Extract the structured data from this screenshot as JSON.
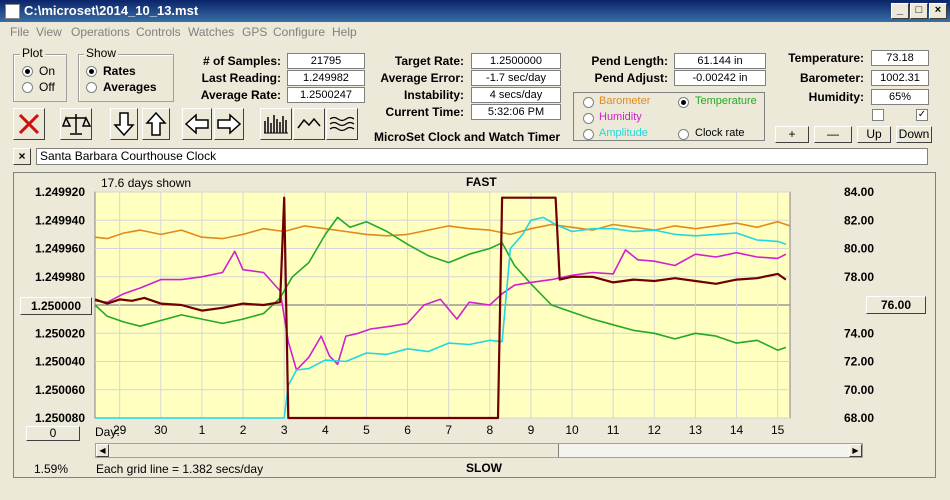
{
  "window": {
    "title": "C:\\microset\\2014_10_13.mst"
  },
  "menu": [
    "File",
    "View",
    "Operations",
    "Controls",
    "Watches",
    "GPS",
    "Configure",
    "Help"
  ],
  "plot_group": {
    "label": "Plot",
    "on": "On",
    "off": "Off",
    "selected": "On"
  },
  "show_group": {
    "label": "Show",
    "rates": "Rates",
    "averages": "Averages",
    "selected": "Rates"
  },
  "stats": {
    "samples_label": "# of Samples:",
    "samples": "21795",
    "last_reading_label": "Last Reading:",
    "last_reading": "1.249982",
    "average_rate_label": "Average Rate:",
    "average_rate": "1.2500247",
    "target_rate_label": "Target Rate:",
    "target_rate": "1.2500000",
    "average_error_label": "Average Error:",
    "average_error": "-1.7 sec/day",
    "instability_label": "Instability:",
    "instability": "4 secs/day",
    "current_time_label": "Current Time:",
    "current_time": "5:32:06 PM",
    "pend_length_label": "Pend Length:",
    "pend_length": "61.144 in",
    "pend_adjust_label": "Pend Adjust:",
    "pend_adjust": "-0.00242 in",
    "temperature_label": "Temperature:",
    "temperature": "73.18",
    "barometer_label": "Barometer:",
    "barometer": "1002.31",
    "humidity_label": "Humidity:",
    "humidity": "65%"
  },
  "app_caption": "MicroSet Clock and Watch Timer",
  "sensor_options": {
    "barometer": "Barometer",
    "temperature": "Temperature",
    "humidity": "Humidity",
    "amplitude": "Amplitude",
    "clock_rate": "Clock rate",
    "selected": "Temperature"
  },
  "right_buttons": {
    "plus": "+",
    "minus": "—",
    "up": "Up",
    "down": "Down"
  },
  "checkboxes": [
    false,
    true
  ],
  "clock_name": "Santa Barbara Courthouse Clock",
  "close_label": "×",
  "colors": {
    "barometer": "#e08a1c",
    "temperature": "#22aa22",
    "humidity": "#d020d0",
    "amplitude": "#20d8e0",
    "clock_rate": "#700000",
    "plot_bg": "#ffffc0",
    "stop_icon": "#d01010"
  },
  "plot": {
    "days_shown": "17.6 days shown",
    "fast_label": "FAST",
    "slow_label": "SLOW",
    "grid_note": "Each grid line = 1.382 secs/day",
    "zoom_pct": "1.59%",
    "center_left_button": "1.250000",
    "center_right_button": "76.00",
    "left_bottom_button": "0",
    "day_label": "Day:"
  },
  "chart_data": {
    "type": "line",
    "y_left_ticks": [
      "1.249920",
      "1.249940",
      "1.249960",
      "1.249980",
      "1.250000",
      "1.250020",
      "1.250040",
      "1.250060",
      "1.250080"
    ],
    "y_right_ticks": [
      "84.00",
      "82.00",
      "80.00",
      "78.00",
      "76.00",
      "74.00",
      "72.00",
      "70.00",
      "68.00"
    ],
    "y_left_range": [
      1.24992,
      1.25008
    ],
    "y_right_range": [
      68,
      84
    ],
    "x_range": [
      28.4,
      15.3
    ],
    "x_ticks": [
      {
        "label": "29",
        "day": 29
      },
      {
        "label": "30",
        "day": 30
      },
      {
        "label": "1",
        "day": 31
      },
      {
        "label": "2",
        "day": 32
      },
      {
        "label": "3",
        "day": 33
      },
      {
        "label": "4",
        "day": 34
      },
      {
        "label": "5",
        "day": 35
      },
      {
        "label": "6",
        "day": 36
      },
      {
        "label": "7",
        "day": 37
      },
      {
        "label": "8",
        "day": 38
      },
      {
        "label": "9",
        "day": 39
      },
      {
        "label": "10",
        "day": 40
      },
      {
        "label": "11",
        "day": 41
      },
      {
        "label": "12",
        "day": 42
      },
      {
        "label": "13",
        "day": 43
      },
      {
        "label": "14",
        "day": 44
      },
      {
        "label": "15",
        "day": 45
      }
    ],
    "grid": true,
    "series": [
      {
        "key": "barometer",
        "axis": "right",
        "points": [
          [
            28.4,
            80.8
          ],
          [
            28.7,
            80.7
          ],
          [
            29.1,
            81.1
          ],
          [
            29.5,
            81.3
          ],
          [
            30.0,
            81.0
          ],
          [
            30.5,
            81.3
          ],
          [
            31.0,
            80.8
          ],
          [
            31.5,
            80.7
          ],
          [
            32.0,
            81.0
          ],
          [
            32.5,
            81.4
          ],
          [
            33.0,
            81.2
          ],
          [
            33.5,
            81.6
          ],
          [
            34.0,
            81.4
          ],
          [
            34.5,
            81.2
          ],
          [
            35.0,
            81.0
          ],
          [
            35.5,
            80.9
          ],
          [
            36.0,
            81.0
          ],
          [
            36.5,
            81.3
          ],
          [
            37.0,
            81.6
          ],
          [
            37.5,
            81.4
          ],
          [
            38.0,
            81.3
          ],
          [
            38.5,
            81.0
          ],
          [
            39.0,
            81.4
          ],
          [
            39.5,
            81.7
          ],
          [
            40.0,
            81.5
          ],
          [
            40.5,
            81.3
          ],
          [
            41.0,
            81.7
          ],
          [
            41.5,
            81.5
          ],
          [
            42.0,
            81.3
          ],
          [
            42.5,
            81.6
          ],
          [
            43.0,
            81.4
          ],
          [
            43.5,
            81.6
          ],
          [
            44.0,
            81.8
          ],
          [
            44.5,
            81.5
          ],
          [
            45.0,
            81.9
          ],
          [
            45.3,
            81.6
          ]
        ]
      },
      {
        "key": "temperature",
        "axis": "right",
        "points": [
          [
            28.4,
            76.0
          ],
          [
            28.7,
            75.2
          ],
          [
            29.1,
            74.8
          ],
          [
            29.5,
            74.5
          ],
          [
            30.0,
            74.9
          ],
          [
            30.5,
            75.3
          ],
          [
            31.0,
            75.0
          ],
          [
            31.5,
            74.7
          ],
          [
            32.0,
            75.0
          ],
          [
            32.5,
            75.4
          ],
          [
            32.9,
            76.5
          ],
          [
            33.2,
            78.0
          ],
          [
            33.6,
            79.0
          ],
          [
            34.0,
            81.0
          ],
          [
            34.3,
            82.2
          ],
          [
            34.6,
            81.5
          ],
          [
            35.0,
            81.9
          ],
          [
            35.5,
            81.2
          ],
          [
            36.0,
            80.3
          ],
          [
            36.5,
            79.5
          ],
          [
            37.0,
            79.0
          ],
          [
            37.5,
            79.6
          ],
          [
            38.0,
            80.0
          ],
          [
            38.3,
            80.4
          ],
          [
            38.6,
            78.8
          ],
          [
            39.0,
            77.5
          ],
          [
            39.5,
            76.0
          ],
          [
            40.0,
            75.5
          ],
          [
            40.5,
            75.0
          ],
          [
            41.0,
            74.6
          ],
          [
            41.5,
            74.2
          ],
          [
            42.0,
            74.0
          ],
          [
            42.5,
            73.6
          ],
          [
            43.0,
            74.0
          ],
          [
            43.5,
            73.8
          ],
          [
            44.0,
            73.3
          ],
          [
            44.5,
            73.5
          ],
          [
            45.0,
            72.8
          ],
          [
            45.2,
            73.0
          ]
        ]
      },
      {
        "key": "humidity",
        "axis": "right",
        "points": [
          [
            28.4,
            76.3
          ],
          [
            28.7,
            76.2
          ],
          [
            29.1,
            76.8
          ],
          [
            29.5,
            77.2
          ],
          [
            30.0,
            77.8
          ],
          [
            30.5,
            77.8
          ],
          [
            31.0,
            78.0
          ],
          [
            31.5,
            78.3
          ],
          [
            31.8,
            79.8
          ],
          [
            32.0,
            78.5
          ],
          [
            32.5,
            78.3
          ],
          [
            32.9,
            77.0
          ],
          [
            33.1,
            73.4
          ],
          [
            33.3,
            71.4
          ],
          [
            33.6,
            72.3
          ],
          [
            33.9,
            73.8
          ],
          [
            34.1,
            72.4
          ],
          [
            34.3,
            71.8
          ],
          [
            34.5,
            73.8
          ],
          [
            34.8,
            74.0
          ],
          [
            35.1,
            74.3
          ],
          [
            35.6,
            74.5
          ],
          [
            36.0,
            74.7
          ],
          [
            36.4,
            76.0
          ],
          [
            36.8,
            76.4
          ],
          [
            37.2,
            75.0
          ],
          [
            37.5,
            76.2
          ],
          [
            38.0,
            76.0
          ],
          [
            38.3,
            76.8
          ],
          [
            38.6,
            77.4
          ],
          [
            39.0,
            77.6
          ],
          [
            39.5,
            77.8
          ],
          [
            40.0,
            78.1
          ],
          [
            40.5,
            78.3
          ],
          [
            41.0,
            78.2
          ],
          [
            41.3,
            79.9
          ],
          [
            41.6,
            79.2
          ],
          [
            42.0,
            79.1
          ],
          [
            42.5,
            78.8
          ],
          [
            43.0,
            79.6
          ],
          [
            43.5,
            79.4
          ],
          [
            44.0,
            79.7
          ],
          [
            44.5,
            79.4
          ],
          [
            45.0,
            79.3
          ],
          [
            45.2,
            79.6
          ]
        ]
      },
      {
        "key": "amplitude",
        "axis": "right",
        "points": [
          [
            28.4,
            68.0
          ],
          [
            30.0,
            68.0
          ],
          [
            31.5,
            68.0
          ],
          [
            32.8,
            68.0
          ],
          [
            33.0,
            68.0
          ],
          [
            33.1,
            70.3
          ],
          [
            33.3,
            71.4
          ],
          [
            33.6,
            71.5
          ],
          [
            34.0,
            72.1
          ],
          [
            34.5,
            72.0
          ],
          [
            35.0,
            72.6
          ],
          [
            35.5,
            72.5
          ],
          [
            36.0,
            72.9
          ],
          [
            36.5,
            72.7
          ],
          [
            37.0,
            73.3
          ],
          [
            37.5,
            73.2
          ],
          [
            38.0,
            73.5
          ],
          [
            38.3,
            73.4
          ],
          [
            38.5,
            80.0
          ],
          [
            38.8,
            81.0
          ],
          [
            39.0,
            82.0
          ],
          [
            39.3,
            82.2
          ],
          [
            39.6,
            81.7
          ],
          [
            40.0,
            81.2
          ],
          [
            40.5,
            81.4
          ],
          [
            41.0,
            81.4
          ],
          [
            41.5,
            81.2
          ],
          [
            42.0,
            81.3
          ],
          [
            42.5,
            81.0
          ],
          [
            43.0,
            80.9
          ],
          [
            43.5,
            81.0
          ],
          [
            44.0,
            81.1
          ],
          [
            44.5,
            80.6
          ],
          [
            45.0,
            80.5
          ],
          [
            45.2,
            80.3
          ]
        ]
      },
      {
        "key": "clock_rate",
        "axis": "left",
        "points": [
          [
            28.4,
            1.249996
          ],
          [
            28.7,
            1.249999
          ],
          [
            29.0,
            1.249996
          ],
          [
            29.3,
            1.249997
          ],
          [
            29.6,
            1.249995
          ],
          [
            30.0,
            1.249999
          ],
          [
            30.5,
            1.25
          ],
          [
            31.0,
            1.250004
          ],
          [
            31.5,
            1.250002
          ],
          [
            32.0,
            1.249999
          ],
          [
            32.5,
            1.25
          ],
          [
            32.9,
            1.249998
          ],
          [
            33.0,
            1.249924
          ],
          [
            33.1,
            1.25008
          ],
          [
            33.4,
            1.25008
          ],
          [
            36.0,
            1.25008
          ],
          [
            38.2,
            1.25008
          ],
          [
            38.3,
            1.249924
          ],
          [
            39.6,
            1.249924
          ],
          [
            39.7,
            1.249982
          ],
          [
            40.0,
            1.24998
          ],
          [
            40.5,
            1.24998
          ],
          [
            41.0,
            1.249984
          ],
          [
            41.5,
            1.249982
          ],
          [
            42.0,
            1.249983
          ],
          [
            42.5,
            1.249981
          ],
          [
            43.0,
            1.249983
          ],
          [
            43.5,
            1.249985
          ],
          [
            44.0,
            1.249982
          ],
          [
            44.5,
            1.249981
          ],
          [
            45.0,
            1.249978
          ],
          [
            45.2,
            1.249982
          ]
        ]
      }
    ]
  }
}
